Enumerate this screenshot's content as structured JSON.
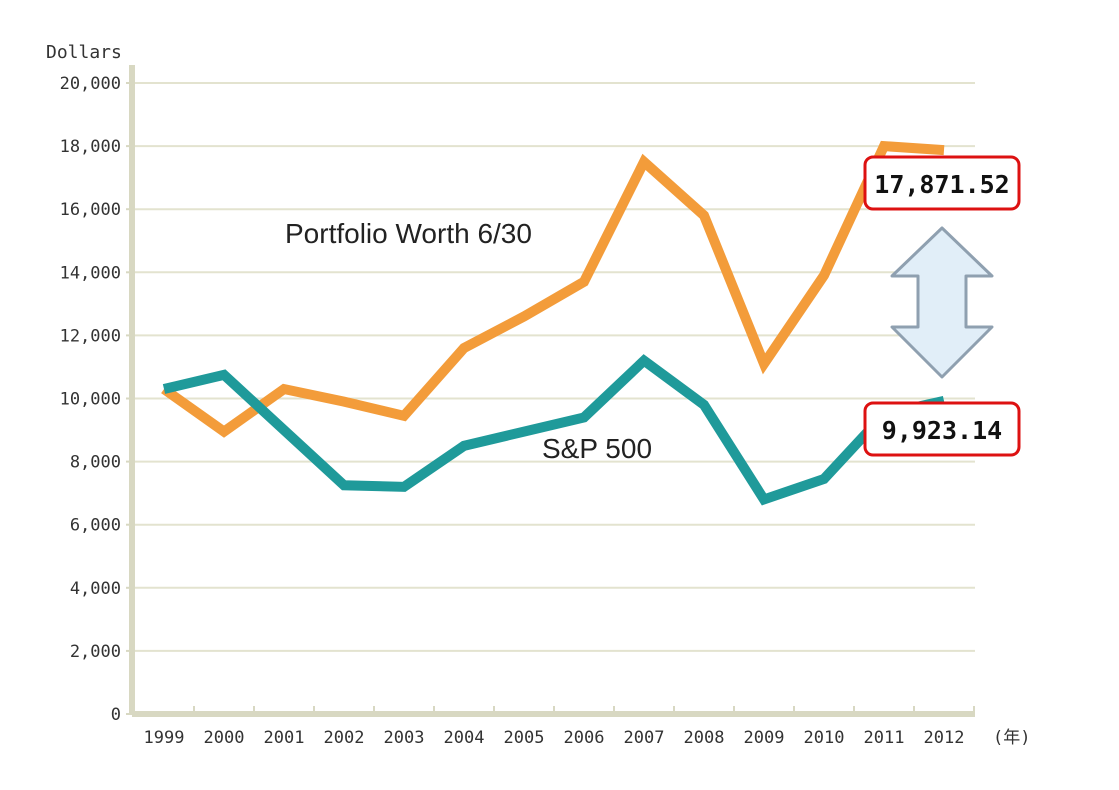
{
  "chart_data": {
    "type": "line",
    "ylabel": "Dollars",
    "x_unit_label": "(年)",
    "x": [
      "1999",
      "2000",
      "2001",
      "2002",
      "2003",
      "2004",
      "2005",
      "2006",
      "2007",
      "2008",
      "2009",
      "2010",
      "2011",
      "2012"
    ],
    "ylim": [
      0,
      20000
    ],
    "y_ticks": [
      "0",
      "2,000",
      "4,000",
      "6,000",
      "8,000",
      "10,000",
      "12,000",
      "14,000",
      "16,000",
      "18,000",
      "20,000"
    ],
    "y_tick_values": [
      0,
      2000,
      4000,
      6000,
      8000,
      10000,
      12000,
      14000,
      16000,
      18000,
      20000
    ],
    "grid": true,
    "series": [
      {
        "name": "Portfolio Worth 6/30",
        "color": "#f39c3a",
        "values": [
          10300,
          8950,
          10300,
          9900,
          9450,
          11600,
          12600,
          13700,
          17500,
          15800,
          11100,
          13900,
          18000,
          17871.52
        ]
      },
      {
        "name": "S&P 500",
        "color": "#1f9a9a",
        "values": [
          10300,
          10750,
          9000,
          7250,
          7200,
          8500,
          8950,
          9400,
          11200,
          9800,
          6800,
          7450,
          9500,
          9923.14
        ]
      }
    ],
    "annotations": [
      {
        "text": "17,871.52",
        "series": 0
      },
      {
        "text": "9,923.14",
        "series": 1
      }
    ],
    "colors": {
      "callout_border": "#dd1111",
      "arrow_fill": "#e1eef8",
      "arrow_stroke": "#8fa0b0",
      "grid": "#e3e3cf",
      "axis": "#d8d8c2"
    }
  }
}
